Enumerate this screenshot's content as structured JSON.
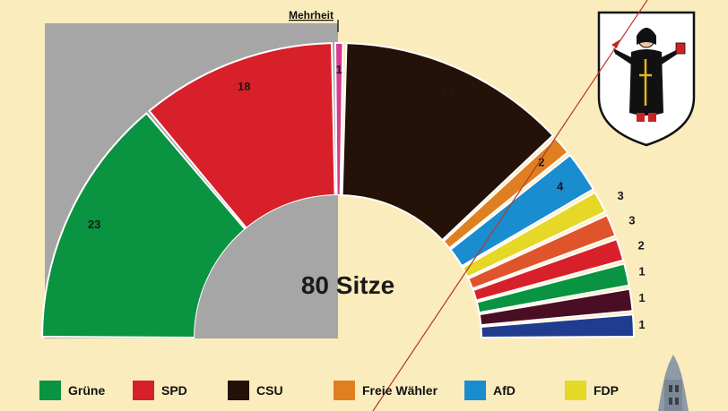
{
  "chart_data": {
    "type": "pie",
    "subtype": "parliament-semicircle",
    "title": "",
    "center_label": "80 Sitze",
    "majority_label": "Mehrheit",
    "total_seats": 80,
    "series": [
      {
        "name": "Grüne",
        "value": 23,
        "color": "#0a9340"
      },
      {
        "name": "SPD",
        "value": 18,
        "color": "#d8202a"
      },
      {
        "name": "",
        "value": 1,
        "color": "#d63a8e"
      },
      {
        "name": "CSU",
        "value": 21,
        "color": "#241108"
      },
      {
        "name": "Freie Wähler",
        "value": 2,
        "color": "#e07f22"
      },
      {
        "name": "AfD",
        "value": 4,
        "color": "#1a8cd0"
      },
      {
        "name": "FDP",
        "value": 3,
        "color": "#e5d827"
      },
      {
        "name": "",
        "value": 3,
        "color": "#e0542c"
      },
      {
        "name": "",
        "value": 2,
        "color": "#d8202a"
      },
      {
        "name": "",
        "value": 1,
        "color": "#0a9340"
      },
      {
        "name": "",
        "value": 1,
        "color": "#4a0e24"
      },
      {
        "name": "",
        "value": 1,
        "color": "#1f3c8f"
      }
    ],
    "left_half_background": "#a6a6a6",
    "legend_placement": "bottom"
  },
  "legend": [
    {
      "label": "Grüne",
      "color": "#0a9340"
    },
    {
      "label": "SPD",
      "color": "#d8202a"
    },
    {
      "label": "CSU",
      "color": "#241108"
    },
    {
      "label": "Freie Wähler",
      "color": "#e07f22"
    },
    {
      "label": "AfD",
      "color": "#1a8cd0"
    },
    {
      "label": "FDP",
      "color": "#e5d827"
    }
  ],
  "decor": {
    "emblem_icon": "munich-coat-of-arms-icon",
    "tower_icon": "church-tower-icon"
  }
}
